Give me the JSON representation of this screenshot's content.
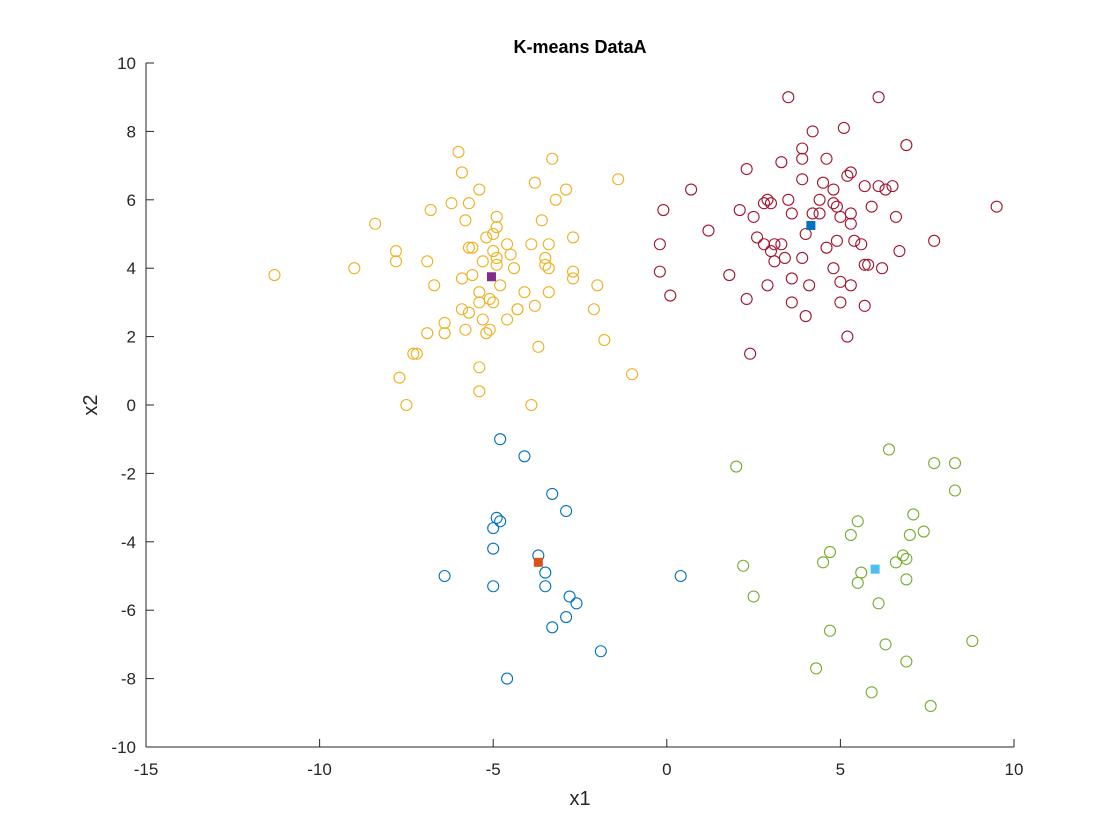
{
  "chart_data": {
    "type": "scatter",
    "title": "K-means DataA",
    "xlabel": "x1",
    "ylabel": "x2",
    "xlim": [
      -15,
      10
    ],
    "ylim": [
      -10,
      10
    ],
    "xticks": [
      -15,
      -10,
      -5,
      0,
      5,
      10
    ],
    "yticks": [
      -10,
      -8,
      -6,
      -4,
      -2,
      0,
      2,
      4,
      6,
      8,
      10
    ],
    "grid": false,
    "legend": "none",
    "series": [
      {
        "color": "#A2142F",
        "marker": "circle-open",
        "points": [
          [
            3.5,
            9.0
          ],
          [
            6.1,
            9.0
          ],
          [
            4.2,
            8.0
          ],
          [
            5.1,
            8.1
          ],
          [
            6.9,
            7.6
          ],
          [
            3.9,
            7.5
          ],
          [
            2.3,
            6.9
          ],
          [
            3.3,
            7.1
          ],
          [
            3.9,
            7.2
          ],
          [
            4.6,
            7.2
          ],
          [
            5.2,
            6.7
          ],
          [
            5.3,
            6.8
          ],
          [
            0.7,
            6.3
          ],
          [
            3.9,
            6.6
          ],
          [
            4.5,
            6.5
          ],
          [
            4.8,
            6.3
          ],
          [
            5.7,
            6.4
          ],
          [
            6.1,
            6.4
          ],
          [
            6.3,
            6.3
          ],
          [
            6.5,
            6.4
          ],
          [
            9.5,
            5.8
          ],
          [
            2.8,
            5.9
          ],
          [
            2.9,
            6.0
          ],
          [
            3.0,
            5.9
          ],
          [
            3.5,
            6.0
          ],
          [
            4.4,
            6.0
          ],
          [
            4.8,
            5.9
          ],
          [
            4.9,
            5.8
          ],
          [
            5.9,
            5.8
          ],
          [
            -0.1,
            5.7
          ],
          [
            2.1,
            5.7
          ],
          [
            2.5,
            5.5
          ],
          [
            3.6,
            5.6
          ],
          [
            4.2,
            5.6
          ],
          [
            4.4,
            5.6
          ],
          [
            5.0,
            5.5
          ],
          [
            5.3,
            5.6
          ],
          [
            6.6,
            5.5
          ],
          [
            5.3,
            5.3
          ],
          [
            1.2,
            5.1
          ],
          [
            2.6,
            4.9
          ],
          [
            3.1,
            4.7
          ],
          [
            3.3,
            4.7
          ],
          [
            4.0,
            5.0
          ],
          [
            4.6,
            4.6
          ],
          [
            4.9,
            4.8
          ],
          [
            5.4,
            4.8
          ],
          [
            5.6,
            4.7
          ],
          [
            7.7,
            4.8
          ],
          [
            -0.2,
            4.7
          ],
          [
            2.8,
            4.7
          ],
          [
            3.0,
            4.5
          ],
          [
            3.4,
            4.3
          ],
          [
            3.9,
            4.3
          ],
          [
            6.7,
            4.5
          ],
          [
            3.1,
            4.2
          ],
          [
            4.8,
            4.0
          ],
          [
            5.7,
            4.1
          ],
          [
            5.8,
            4.1
          ],
          [
            6.2,
            4.0
          ],
          [
            -0.2,
            3.9
          ],
          [
            1.8,
            3.8
          ],
          [
            3.6,
            3.7
          ],
          [
            2.9,
            3.5
          ],
          [
            4.1,
            3.5
          ],
          [
            5.0,
            3.6
          ],
          [
            5.3,
            3.5
          ],
          [
            0.1,
            3.2
          ],
          [
            2.3,
            3.1
          ],
          [
            3.6,
            3.0
          ],
          [
            5.0,
            3.0
          ],
          [
            5.7,
            2.9
          ],
          [
            4.0,
            2.6
          ],
          [
            5.2,
            2.0
          ],
          [
            2.4,
            1.5
          ]
        ]
      },
      {
        "color": "#EDB120",
        "marker": "circle-open",
        "points": [
          [
            -6.0,
            7.4
          ],
          [
            -3.3,
            7.2
          ],
          [
            -5.9,
            6.8
          ],
          [
            -1.4,
            6.6
          ],
          [
            -3.8,
            6.5
          ],
          [
            -2.9,
            6.3
          ],
          [
            -5.4,
            6.3
          ],
          [
            -6.2,
            5.9
          ],
          [
            -5.7,
            5.9
          ],
          [
            -3.2,
            6.0
          ],
          [
            -6.8,
            5.7
          ],
          [
            -8.4,
            5.3
          ],
          [
            -4.9,
            5.5
          ],
          [
            -4.9,
            5.2
          ],
          [
            -5.8,
            5.4
          ],
          [
            -3.6,
            5.4
          ],
          [
            -5.0,
            5.0
          ],
          [
            -5.2,
            4.9
          ],
          [
            -4.6,
            4.7
          ],
          [
            -3.9,
            4.7
          ],
          [
            -3.4,
            4.7
          ],
          [
            -2.7,
            4.9
          ],
          [
            -7.8,
            4.5
          ],
          [
            -5.7,
            4.6
          ],
          [
            -5.6,
            4.6
          ],
          [
            -5.0,
            4.5
          ],
          [
            -4.5,
            4.4
          ],
          [
            -3.5,
            4.3
          ],
          [
            -7.8,
            4.2
          ],
          [
            -6.9,
            4.2
          ],
          [
            -5.3,
            4.2
          ],
          [
            -4.9,
            4.1
          ],
          [
            -3.5,
            4.1
          ],
          [
            -3.4,
            4.0
          ],
          [
            -4.4,
            4.0
          ],
          [
            -2.7,
            3.9
          ],
          [
            -11.3,
            3.8
          ],
          [
            -9.0,
            4.0
          ],
          [
            -5.6,
            3.8
          ],
          [
            -5.9,
            3.7
          ],
          [
            -4.8,
            3.5
          ],
          [
            -5.4,
            3.3
          ],
          [
            -4.1,
            3.3
          ],
          [
            -3.4,
            3.3
          ],
          [
            -2.7,
            3.7
          ],
          [
            -2.0,
            3.5
          ],
          [
            -6.7,
            3.5
          ],
          [
            -5.4,
            3.0
          ],
          [
            -5.0,
            3.0
          ],
          [
            -4.3,
            2.8
          ],
          [
            -3.8,
            2.9
          ],
          [
            -5.9,
            2.8
          ],
          [
            -5.7,
            2.7
          ],
          [
            -4.3,
            2.8
          ],
          [
            -5.3,
            2.5
          ],
          [
            -4.6,
            2.5
          ],
          [
            -2.1,
            2.8
          ],
          [
            -6.4,
            2.4
          ],
          [
            -5.8,
            2.2
          ],
          [
            -5.2,
            2.1
          ],
          [
            -5.1,
            2.2
          ],
          [
            -6.9,
            2.1
          ],
          [
            -6.4,
            2.1
          ],
          [
            -1.8,
            1.9
          ],
          [
            -3.7,
            1.7
          ],
          [
            -7.2,
            1.5
          ],
          [
            -7.3,
            1.5
          ],
          [
            -5.4,
            1.1
          ],
          [
            -1.0,
            0.9
          ],
          [
            -7.7,
            0.8
          ],
          [
            -5.4,
            0.4
          ],
          [
            -7.5,
            0.0
          ],
          [
            -3.9,
            0.0
          ],
          [
            -5.1,
            3.1
          ],
          [
            -4.9,
            4.3
          ]
        ]
      },
      {
        "color": "#0072BD",
        "marker": "circle-open",
        "points": [
          [
            -4.8,
            -1.0
          ],
          [
            -4.1,
            -1.5
          ],
          [
            -3.3,
            -2.6
          ],
          [
            -2.9,
            -3.1
          ],
          [
            -4.9,
            -3.3
          ],
          [
            -4.8,
            -3.4
          ],
          [
            -5.0,
            -3.6
          ],
          [
            -5.0,
            -4.2
          ],
          [
            -3.7,
            -4.4
          ],
          [
            -3.5,
            -4.9
          ],
          [
            -6.4,
            -5.0
          ],
          [
            0.4,
            -5.0
          ],
          [
            -5.0,
            -5.3
          ],
          [
            -3.5,
            -5.3
          ],
          [
            -2.8,
            -5.6
          ],
          [
            -2.6,
            -5.8
          ],
          [
            -2.9,
            -6.2
          ],
          [
            -3.3,
            -6.5
          ],
          [
            -1.9,
            -7.2
          ],
          [
            -4.6,
            -8.0
          ]
        ]
      },
      {
        "color": "#77AC30",
        "marker": "circle-open",
        "points": [
          [
            6.4,
            -1.3
          ],
          [
            7.7,
            -1.7
          ],
          [
            8.3,
            -1.7
          ],
          [
            2.0,
            -1.8
          ],
          [
            8.3,
            -2.5
          ],
          [
            7.1,
            -3.2
          ],
          [
            5.5,
            -3.4
          ],
          [
            7.4,
            -3.7
          ],
          [
            5.3,
            -3.8
          ],
          [
            7.0,
            -3.8
          ],
          [
            4.7,
            -4.3
          ],
          [
            6.8,
            -4.4
          ],
          [
            6.9,
            -4.5
          ],
          [
            2.2,
            -4.7
          ],
          [
            4.5,
            -4.6
          ],
          [
            6.6,
            -4.6
          ],
          [
            5.6,
            -4.9
          ],
          [
            5.5,
            -5.2
          ],
          [
            6.9,
            -5.1
          ],
          [
            2.5,
            -5.6
          ],
          [
            6.1,
            -5.8
          ],
          [
            4.7,
            -6.6
          ],
          [
            8.8,
            -6.9
          ],
          [
            6.3,
            -7.0
          ],
          [
            6.9,
            -7.5
          ],
          [
            4.3,
            -7.7
          ],
          [
            5.9,
            -8.4
          ],
          [
            7.6,
            -8.8
          ]
        ]
      }
    ],
    "centroids": [
      {
        "x": 4.15,
        "y": 5.25,
        "color": "#0072BD"
      },
      {
        "x": -5.05,
        "y": 3.75,
        "color": "#7E2F8E"
      },
      {
        "x": -3.7,
        "y": -4.6,
        "color": "#D95319"
      },
      {
        "x": 6.0,
        "y": -4.8,
        "color": "#4DBEEE"
      }
    ]
  }
}
